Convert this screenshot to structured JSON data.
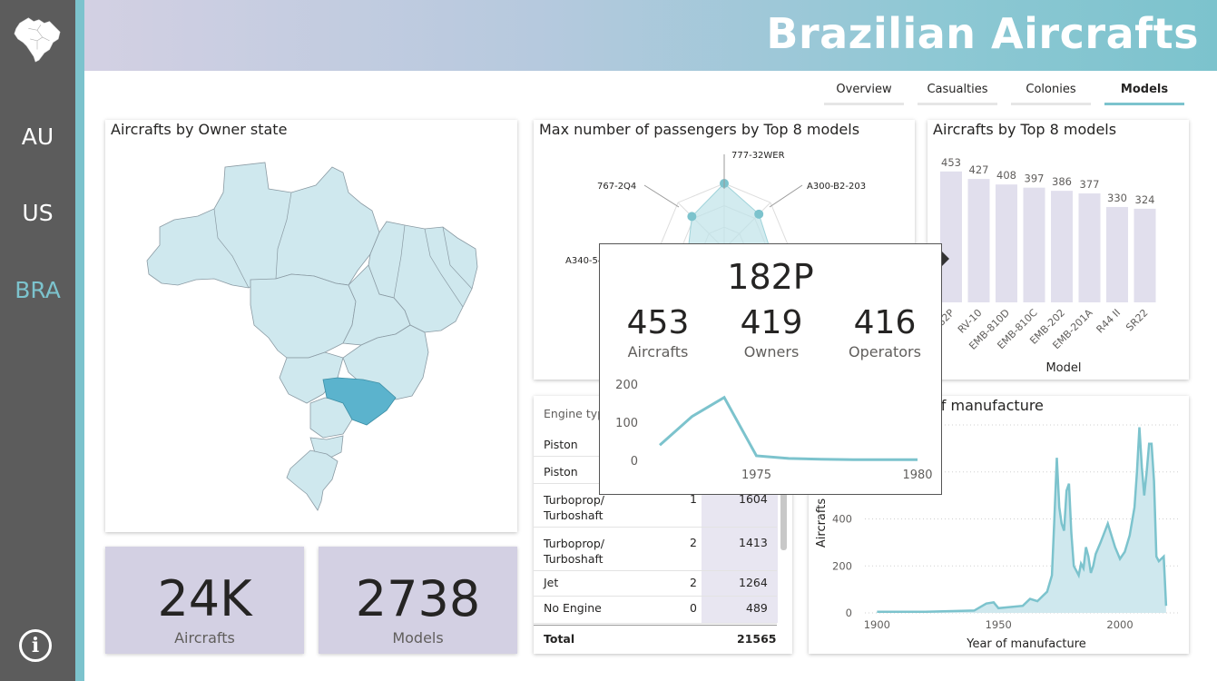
{
  "title": "Brazilian Aircrafts",
  "icons": {
    "logo": "brazil-map-icon",
    "info": "info-icon"
  },
  "sidebar": {
    "items": [
      {
        "label": "AU"
      },
      {
        "label": "US"
      },
      {
        "label": "BRA",
        "active": true
      }
    ]
  },
  "tabs": [
    {
      "label": "Overview"
    },
    {
      "label": "Casualties"
    },
    {
      "label": "Colonies"
    },
    {
      "label": "Models",
      "active": true
    }
  ],
  "map_card": {
    "title": "Aircrafts by Owner state"
  },
  "kpis": [
    {
      "value": "24K",
      "label": "Aircrafts"
    },
    {
      "value": "2738",
      "label": "Models"
    }
  ],
  "radar_card": {
    "title": "Max number of passengers by Top 8 models"
  },
  "bar_card": {
    "title": "Aircrafts by Top 8 models",
    "xlabel": "Model"
  },
  "table": {
    "header": "Engine typ",
    "rows": [
      {
        "type": "Piston",
        "engines": "",
        "count": ""
      },
      {
        "type": "Piston",
        "engines": "",
        "count": ""
      },
      {
        "type": "Turboprop/ Turboshaft",
        "engines": "1",
        "count": "1604"
      },
      {
        "type": "Turboprop/ Turboshaft",
        "engines": "2",
        "count": "1413"
      },
      {
        "type": "Jet",
        "engines": "2",
        "count": "1264"
      },
      {
        "type": "No Engine",
        "engines": "0",
        "count": "489"
      }
    ],
    "total_label": "Total",
    "total_value": "21565"
  },
  "area_card": {
    "title": "of manufacture",
    "xlabel": "Year of manufacture",
    "ylabel": "Aircrafts"
  },
  "tooltip": {
    "title": "182P",
    "stats": [
      {
        "value": "453",
        "label": "Aircrafts"
      },
      {
        "value": "419",
        "label": "Owners"
      },
      {
        "value": "416",
        "label": "Operators"
      }
    ]
  },
  "colors": {
    "accent": "#7cc3cd",
    "sidebar": "#5c5c5c",
    "bar": "#e1dfed",
    "kpi": "#d3d0e3",
    "map": "#cfe8ee",
    "highlight": "#5bb3cd"
  },
  "chart_data": [
    {
      "type": "radar",
      "categories": [
        "777-32WER",
        "A300-B2-203",
        "",
        "",
        "",
        "",
        "A340-54",
        "767-2Q4"
      ],
      "visible_category_labels": [
        "777-32WER",
        "A300-B2-203",
        "767-2Q4",
        "A340-54"
      ]
    },
    {
      "type": "bar",
      "categories": [
        "182P",
        "RV-10",
        "EMB-810D",
        "EMB-810C",
        "EMB-202",
        "EMB-201A",
        "R44 II",
        "SR22"
      ],
      "tick_labels": [
        "82P",
        "RV-10",
        "EMB-810D",
        "EMB-810C",
        "EMB-202",
        "EMB-201A",
        "R44 II",
        "SR22"
      ],
      "values": [
        453,
        427,
        408,
        397,
        386,
        377,
        330,
        324
      ],
      "xlabel": "Model",
      "ylim": [
        0,
        500
      ]
    },
    {
      "type": "area",
      "x": [
        1900,
        1920,
        1940,
        1945,
        1948,
        1950,
        1955,
        1960,
        1963,
        1966,
        1968,
        1970,
        1972,
        1973,
        1974,
        1975,
        1976,
        1977,
        1978,
        1979,
        1980,
        1981,
        1982,
        1983,
        1984,
        1985,
        1986,
        1987,
        1988,
        1989,
        1990,
        1992,
        1995,
        1998,
        2000,
        2002,
        2004,
        2006,
        2007,
        2008,
        2009,
        2010,
        2011,
        2012,
        2013,
        2014,
        2015,
        2016,
        2017,
        2018,
        2019
      ],
      "y": [
        5,
        5,
        10,
        40,
        45,
        20,
        25,
        30,
        60,
        50,
        70,
        90,
        160,
        400,
        660,
        450,
        380,
        350,
        520,
        550,
        340,
        200,
        180,
        160,
        210,
        190,
        280,
        240,
        170,
        200,
        250,
        300,
        380,
        280,
        230,
        260,
        330,
        450,
        600,
        790,
        620,
        500,
        600,
        720,
        720,
        560,
        240,
        220,
        230,
        240,
        30
      ],
      "xticks": [
        1900,
        1950,
        2000
      ],
      "yticks": [
        0,
        200,
        400
      ],
      "xlim": [
        1895,
        2025
      ],
      "ylim": [
        0,
        800
      ],
      "xlabel": "Year of manufacture",
      "ylabel": "Aircrafts"
    },
    {
      "type": "line",
      "x": [
        1972,
        1973,
        1974,
        1975,
        1976,
        1977,
        1978,
        1979,
        1980
      ],
      "y": [
        40,
        115,
        165,
        12,
        5,
        3,
        2,
        2,
        2
      ],
      "xticks": [
        1975,
        1980
      ],
      "yticks": [
        0,
        100,
        200
      ],
      "ylim": [
        0,
        200
      ]
    }
  ]
}
